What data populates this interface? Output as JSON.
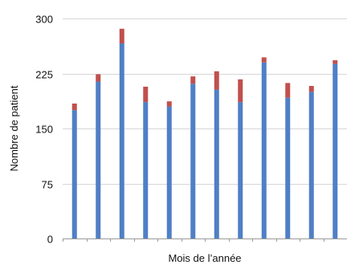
{
  "chart_data": {
    "type": "bar",
    "stacked": true,
    "xlabel": "Mois de l’année",
    "ylabel": "Nombre de patient",
    "ylim": [
      0,
      300
    ],
    "yticks": [
      0,
      75,
      150,
      225,
      300
    ],
    "grid": "horizontal",
    "legend": "none",
    "categories": [
      "",
      "",
      "",
      "",
      "",
      "",
      "",
      "",
      "",
      "",
      "",
      ""
    ],
    "series": [
      {
        "values": [
          175,
          214,
          266,
          186,
          180,
          211,
          203,
          186,
          240,
          192,
          200,
          238
        ],
        "color": "#4f7fc6"
      },
      {
        "values": [
          9,
          10,
          20,
          21,
          7,
          10,
          25,
          31,
          7,
          20,
          8,
          5
        ],
        "color": "#c0504d"
      }
    ]
  }
}
